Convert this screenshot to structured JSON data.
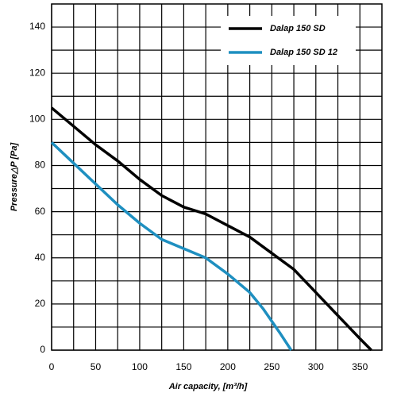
{
  "chart_data": {
    "type": "line",
    "xlabel": "Air capacity, [m³/h]",
    "ylabel": "Pressure△P [Pa]",
    "xlim": [
      0,
      375
    ],
    "ylim": [
      0,
      150
    ],
    "xticks": [
      0,
      50,
      100,
      150,
      200,
      250,
      300,
      350
    ],
    "yticks": [
      0,
      20,
      40,
      60,
      80,
      100,
      120,
      140
    ],
    "grid": true,
    "legend": "upper right",
    "series": [
      {
        "name": "Dalap 150 SD",
        "color": "#000000",
        "x": [
          0,
          25,
          50,
          75,
          100,
          125,
          150,
          175,
          200,
          225,
          250,
          275,
          300,
          325,
          350,
          363
        ],
        "values": [
          105,
          97,
          89,
          82,
          74,
          67,
          62,
          59,
          54,
          49,
          42,
          35,
          25,
          15,
          5,
          0
        ]
      },
      {
        "name": "Dalap 150 SD 12",
        "color": "#1e8fc0",
        "x": [
          0,
          25,
          50,
          75,
          100,
          125,
          150,
          175,
          200,
          225,
          240,
          260,
          272
        ],
        "values": [
          90,
          81,
          72,
          63,
          55,
          48,
          44,
          40,
          33,
          25,
          18,
          7,
          0
        ]
      }
    ]
  }
}
